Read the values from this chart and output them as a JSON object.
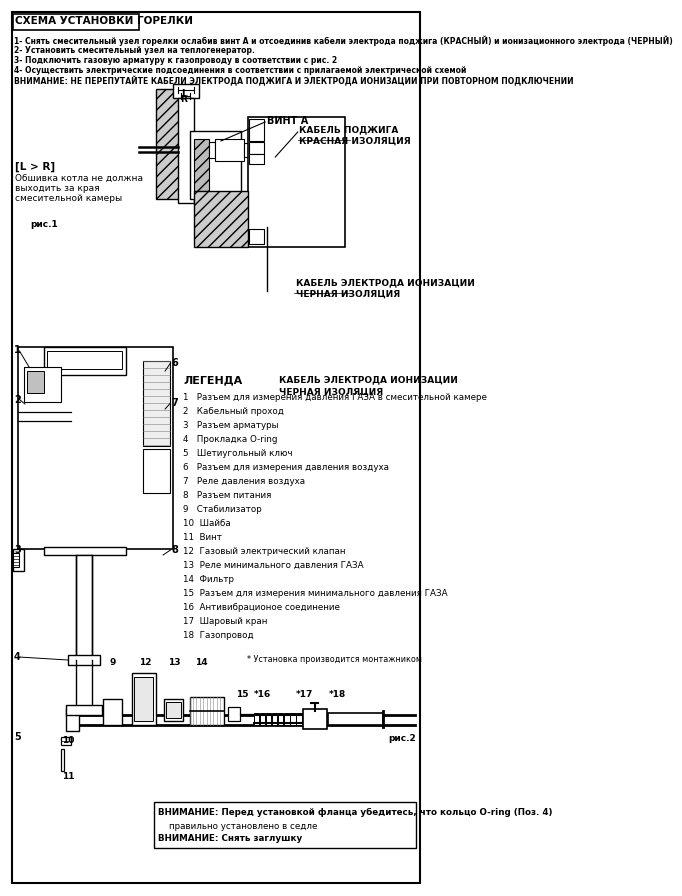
{
  "title": "СХЕМА УСТАНОВКИ ГОРЕЛКИ",
  "background_color": "#ffffff",
  "border_color": "#000000",
  "instructions": [
    "1- Снять смесительный узел горелки ослабив винт А и отсоединив кабели электрода поджига (КРАСНЫЙ) и ионизационного электрода (ЧЕРНЫЙ)",
    "2- Установить смесительный узел на теплогенератор.",
    "3- Подключить газовую арматуру к газопроводу в соответствии с рис. 2",
    "4- Осуществить электрические подсоединения в соответствии с прилагаемой электрической схемой"
  ],
  "warning1": "ВНИМАНИЕ: НЕ ПЕРЕПУТАЙТЕ КАБЕЛИ ЭЛЕКТРОДА ПОДЖИГА И ЭЛЕКТРОДА ИОНИЗАЦИИ ПРИ ПОВТОРНОМ ПОДКЛЮЧЕНИИ",
  "fig1_labels": {
    "L_label": "L",
    "R_label": "R",
    "vint_a": "ВИНТ А",
    "cable_pozh": "КАБЕЛЬ ПОДЖИГА",
    "red_iso": "КРАСНАЯ ИЗОЛЯЦИЯ",
    "cable_ion": "КАБЕЛЬ ЭЛЕКТРОДА ИОНИЗАЦИИ",
    "black_iso": "ЧЕРНАЯ ИЗОЛЯЦИЯ",
    "lr_note": "[L > R]",
    "lr_desc1": "Обшивка котла не должна",
    "lr_desc2": "выходить за края",
    "lr_desc3": "смесительной камеры",
    "ris1": "рис.1"
  },
  "legend_title": "ЛЕГЕНДА",
  "legend_items": [
    "1   Разъем для измерения давления ГАЗА в смесительной камере",
    "2   Кабельный проход",
    "3   Разъем арматуры",
    "4   Прокладка O-ring",
    "5   Шетиугольный ключ",
    "6   Разъем для измерения давления воздуха",
    "7   Реле давления воздуха",
    "8   Разъем питания",
    "9   Стабилизатор",
    "10  Шайба",
    "11  Винт",
    "12  Газовый электрический клапан",
    "13  Реле минимального давления ГАЗА",
    "14  Фильтр",
    "15  Разъем для измерения минимального давления ГАЗА",
    "16  Антивибрационое соединение",
    "17  Шаровый кран",
    "18  Газопровод"
  ],
  "installer_note": "* Установка производится монтажником",
  "fig2_label": "рис.2",
  "warning2_line1": "ВНИМАНИЕ: Перед установкой фланца убедитесь, что кольцо O-ring (Поз. 4)",
  "warning2_line2": "правильно установлено в седле",
  "warning3": "ВНИМАНИЕ: Снять заглушку"
}
